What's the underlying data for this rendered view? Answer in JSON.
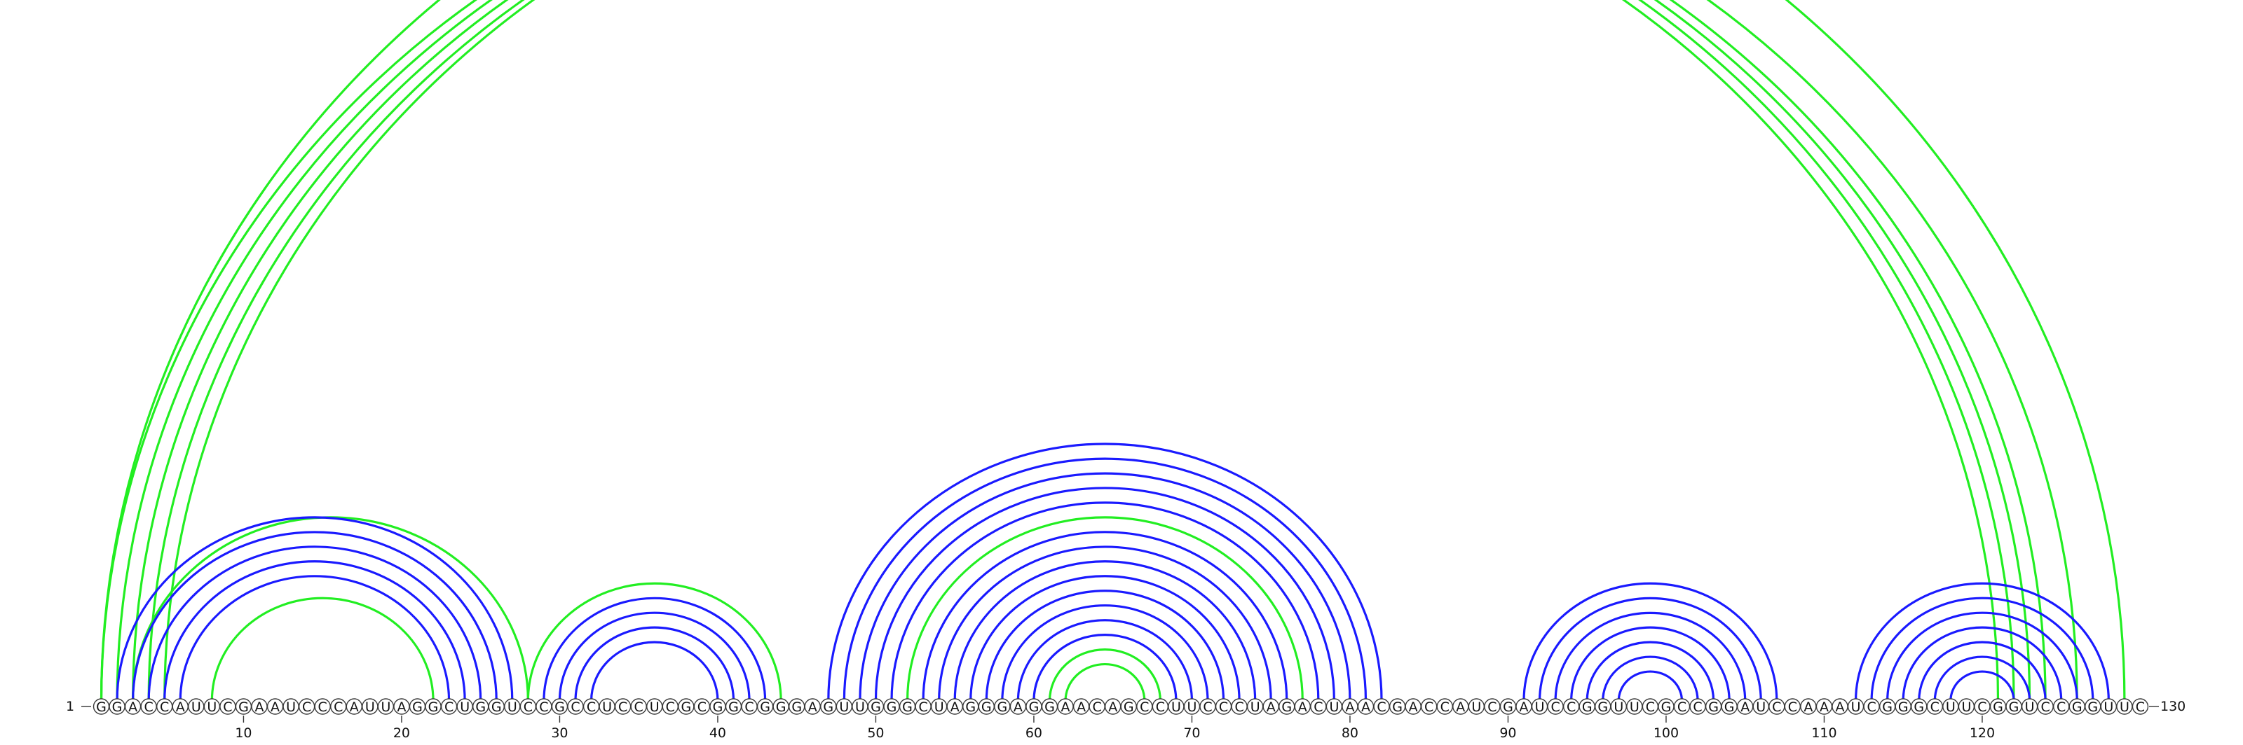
{
  "sequence": "GGACCAUUCGAAUCCCAUUAGGCUGGUCCGCCUCCUCGCGGCGGGAGUUGGGCUAGGGAGGAACAGCCUUCCCUAGACUAACGACCAUCGAUCCGGUUCGCCGGAUCCAAAUCGGGCUUCGGUCCGGUUC",
  "start_label": "1",
  "end_label": "130",
  "ticks": [
    "10",
    "20",
    "30",
    "40",
    "50",
    "60",
    "70",
    "80",
    "90",
    "100",
    "110",
    "120"
  ],
  "colors": {
    "blue": "#1a1aff",
    "green": "#22ee22"
  },
  "arcs": {
    "blue": [
      {
        "i": 2,
        "j": 27
      },
      {
        "i": 3,
        "j": 26
      },
      {
        "i": 4,
        "j": 25
      },
      {
        "i": 5,
        "j": 24
      },
      {
        "i": 6,
        "j": 23
      },
      {
        "i": 29,
        "j": 43
      },
      {
        "i": 30,
        "j": 42
      },
      {
        "i": 31,
        "j": 41
      },
      {
        "i": 32,
        "j": 40
      },
      {
        "i": 47,
        "j": 82
      },
      {
        "i": 48,
        "j": 81
      },
      {
        "i": 49,
        "j": 80
      },
      {
        "i": 50,
        "j": 79
      },
      {
        "i": 51,
        "j": 78
      },
      {
        "i": 53,
        "j": 76
      },
      {
        "i": 54,
        "j": 75
      },
      {
        "i": 55,
        "j": 74
      },
      {
        "i": 56,
        "j": 73
      },
      {
        "i": 57,
        "j": 72
      },
      {
        "i": 58,
        "j": 71
      },
      {
        "i": 59,
        "j": 70
      },
      {
        "i": 60,
        "j": 69
      },
      {
        "i": 91,
        "j": 107
      },
      {
        "i": 92,
        "j": 106
      },
      {
        "i": 93,
        "j": 105
      },
      {
        "i": 94,
        "j": 104
      },
      {
        "i": 95,
        "j": 103
      },
      {
        "i": 96,
        "j": 102
      },
      {
        "i": 97,
        "j": 101
      },
      {
        "i": 112,
        "j": 128
      },
      {
        "i": 113,
        "j": 127
      },
      {
        "i": 114,
        "j": 126
      },
      {
        "i": 115,
        "j": 125
      },
      {
        "i": 116,
        "j": 124
      },
      {
        "i": 117,
        "j": 123
      },
      {
        "i": 118,
        "j": 122
      }
    ],
    "green": [
      {
        "i": 1,
        "j": 121
      },
      {
        "i": 2,
        "j": 122
      },
      {
        "i": 3,
        "j": 123
      },
      {
        "i": 4,
        "j": 124
      },
      {
        "i": 5,
        "j": 126
      },
      {
        "i": 1,
        "j": 129
      },
      {
        "i": 3,
        "j": 28
      },
      {
        "i": 8,
        "j": 22
      },
      {
        "i": 28,
        "j": 44
      },
      {
        "i": 52,
        "j": 77
      },
      {
        "i": 61,
        "j": 68
      },
      {
        "i": 62,
        "j": 67
      }
    ]
  }
}
